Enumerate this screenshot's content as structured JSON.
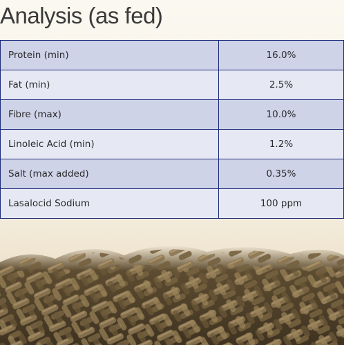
{
  "header": {
    "title": "Analysis (as fed)"
  },
  "table": {
    "rows": [
      [
        "Protein (min)",
        "16.0%"
      ],
      [
        "Fat (min)",
        "2.5%"
      ],
      [
        "Fibre (max)",
        "10.0%"
      ],
      [
        "Linoleic Acid (min)",
        "1.2%"
      ],
      [
        "Salt (max added)",
        "0.35%"
      ],
      [
        "Lasalocid Sodium",
        "100 ppm"
      ]
    ]
  }
}
